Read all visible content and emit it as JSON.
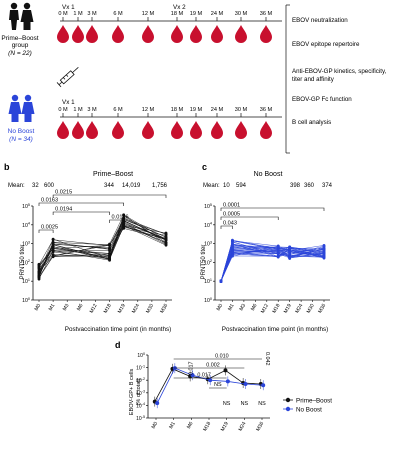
{
  "panel_a": {
    "pb_group_line1": "Prime–Boost",
    "pb_group_line2": "group",
    "pb_group_n": "(N = 22)",
    "nb_group_line1": "No Boost",
    "nb_group_n": "(N = 34)",
    "pb_timeline": [
      "0 M",
      "1 M",
      "3 M",
      "6 M",
      "12 M",
      "18 M",
      "19 M",
      "24 M",
      "30 M",
      "36 M"
    ],
    "nb_timeline": [
      "0 M",
      "1 M",
      "3 M",
      "6 M",
      "12 M",
      "18 M",
      "19 M",
      "24 M",
      "30 M",
      "36 M"
    ],
    "vx1_label": "Vx 1",
    "vx2_label": "Vx 2",
    "vx1b_label": "Vx 1",
    "assays": [
      "EBOV neutralization",
      "EBOV epitope repertoire",
      "Anti-EBOV-GP kinetics, specificity,",
      "titer and affinity",
      "EBOV-GP Fc function",
      "B cell analysis"
    ],
    "colors": {
      "drop": "#c8102e",
      "pb_icon": "#111111",
      "nb_icon": "#2b45d9",
      "nb_text": "#2b45d9"
    }
  },
  "panel_b": {
    "letter": "b",
    "title": "Prime–Boost",
    "mean_label": "Mean:",
    "means": [
      "32",
      "600",
      "344",
      "14,019",
      "1,756"
    ],
    "ylabel": "PRNT50 titer",
    "xlabel": "Postvaccination time point (in months)",
    "pvalues": [
      "0.0215",
      "0.0163",
      "0.0194",
      "0.0186",
      "0.0025"
    ],
    "chart_data": {
      "type": "line",
      "categories": [
        "M0",
        "M1",
        "M3",
        "M6",
        "M12",
        "M18",
        "M19",
        "M24",
        "M30",
        "M36"
      ],
      "yscale": "log",
      "ylim": [
        1,
        100000
      ],
      "yticks": [
        "10^0",
        "10^1",
        "10^2",
        "10^3",
        "10^4",
        "10^5"
      ],
      "measured_points": [
        "M0",
        "M1",
        "M18",
        "M19",
        "M36"
      ],
      "means": [
        32,
        600,
        344,
        14019,
        1756
      ],
      "series_color": "#111111"
    }
  },
  "panel_c": {
    "letter": "c",
    "title": "No Boost",
    "mean_label": "Mean:",
    "means": [
      "10",
      "594",
      "398",
      "360",
      "374"
    ],
    "ylabel": "PRNT50 titer",
    "xlabel": "Postvaccination time point (in months)",
    "pvalues": [
      "0.0001",
      "0.0005",
      "0.043"
    ],
    "chart_data": {
      "type": "line",
      "categories": [
        "M0",
        "M1",
        "M3",
        "M6",
        "M12",
        "M18",
        "M19",
        "M24",
        "M30",
        "M36"
      ],
      "yscale": "log",
      "ylim": [
        1,
        100000
      ],
      "yticks": [
        "10^0",
        "10^1",
        "10^2",
        "10^3",
        "10^4",
        "10^5"
      ],
      "measured_points": [
        "M0",
        "M1",
        "M18",
        "M19",
        "M36"
      ],
      "means": [
        10,
        594,
        398,
        360,
        374
      ],
      "series_color": "#2b45d9"
    }
  },
  "panel_d": {
    "letter": "d",
    "ylabel_line1": "EBOV-GP+ B cells",
    "ylabel_line2": "(% of total)",
    "pvalues": [
      "0.017",
      "0.017",
      "0.002",
      "0.010",
      "0.042"
    ],
    "ns_label": "NS",
    "legend": [
      "Prime–Boost",
      "No Boost"
    ],
    "chart_data": {
      "type": "line",
      "categories": [
        "M0",
        "M1",
        "M6",
        "M18",
        "M19",
        "M24",
        "M36"
      ],
      "yscale": "log",
      "ylim": [
        1e-05,
        1
      ],
      "yticks": [
        "10^-5",
        "10^-4",
        "10^-3",
        "10^-2",
        "10^-1",
        "10^0"
      ],
      "series": [
        {
          "name": "Prime–Boost",
          "values": [
            0.0002,
            0.08,
            0.02,
            0.012,
            0.06,
            0.006,
            0.005
          ],
          "color": "#111111"
        },
        {
          "name": "No Boost",
          "values": [
            0.00015,
            0.09,
            0.025,
            0.01,
            0.008,
            0.005,
            0.004
          ],
          "color": "#2b45d9"
        }
      ]
    }
  }
}
